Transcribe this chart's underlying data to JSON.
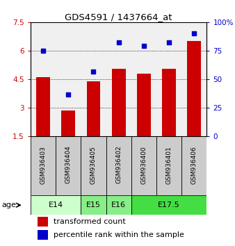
{
  "title": "GDS4591 / 1437664_at",
  "samples": [
    "GSM936403",
    "GSM936404",
    "GSM936405",
    "GSM936402",
    "GSM936400",
    "GSM936401",
    "GSM936406"
  ],
  "bar_values": [
    4.6,
    2.85,
    4.4,
    5.05,
    4.8,
    5.05,
    6.5
  ],
  "dot_values": [
    75,
    37,
    57,
    82,
    79,
    82,
    90
  ],
  "bar_color": "#cc0000",
  "dot_color": "#0000cc",
  "ylim_left": [
    1.5,
    7.5
  ],
  "ylim_right": [
    0,
    100
  ],
  "yticks_left": [
    1.5,
    3.0,
    4.5,
    6.0,
    7.5
  ],
  "yticks_right": [
    0,
    25,
    50,
    75,
    100
  ],
  "ytick_labels_left": [
    "1.5",
    "3",
    "4.5",
    "6",
    "7.5"
  ],
  "ytick_labels_right": [
    "0",
    "25",
    "50",
    "75",
    "100%"
  ],
  "age_groups": [
    {
      "label": "E14",
      "start": 0,
      "end": 1,
      "color": "#ccffcc"
    },
    {
      "label": "E15",
      "start": 2,
      "end": 2,
      "color": "#88ee88"
    },
    {
      "label": "E16",
      "start": 3,
      "end": 3,
      "color": "#88ee88"
    },
    {
      "label": "E17.5",
      "start": 4,
      "end": 6,
      "color": "#44dd44"
    }
  ],
  "sample_bg_color": "#cccccc",
  "legend_bar_label": "transformed count",
  "legend_dot_label": "percentile rank within the sample",
  "age_label": "age",
  "bar_width": 0.55,
  "background_color": "#ffffff"
}
